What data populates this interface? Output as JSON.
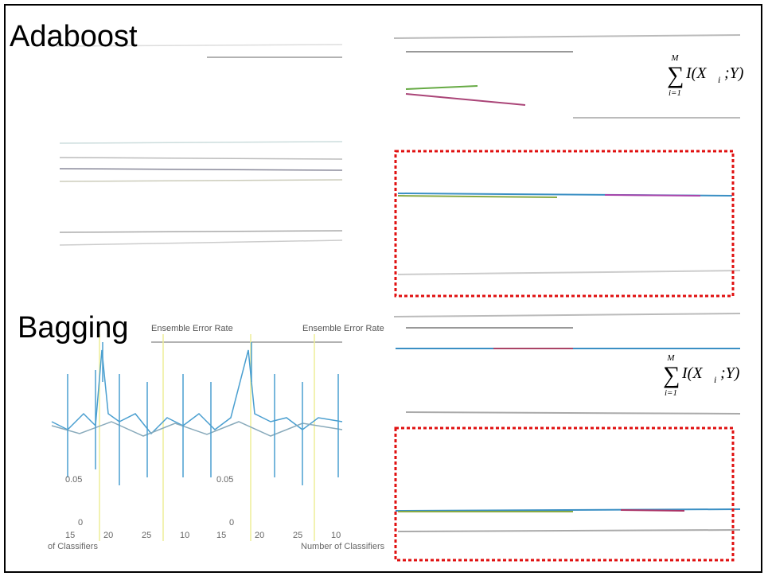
{
  "titles": {
    "adaboost": "Adaboost",
    "bagging": "Bagging"
  },
  "formulas": [
    {
      "upper": "M",
      "lower": "i=1",
      "body": "I(X",
      "sub": "i",
      "tail": ";Y)"
    },
    {
      "upper": "M",
      "lower": "i=1",
      "body": "I(X",
      "sub": "i",
      "tail": ";Y)"
    }
  ],
  "bagging_panels": [
    {
      "title": "Ensemble Error Rate",
      "yticks": [
        "0.05",
        "0"
      ],
      "xticks": [
        "15",
        "20",
        "25",
        "10"
      ],
      "xlabel": "of Classifiers"
    },
    {
      "title": "Ensemble Error Rate",
      "yticks": [
        "0.05",
        "0"
      ],
      "xticks": [
        "15",
        "20",
        "25",
        "10"
      ],
      "xlabel": "Number of Classifiers"
    }
  ]
}
